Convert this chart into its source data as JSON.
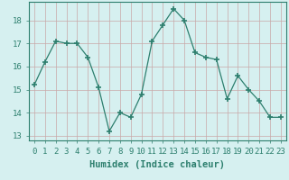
{
  "x": [
    0,
    1,
    2,
    3,
    4,
    5,
    6,
    7,
    8,
    9,
    10,
    11,
    12,
    13,
    14,
    15,
    16,
    17,
    18,
    19,
    20,
    21,
    22,
    23
  ],
  "y": [
    15.2,
    16.2,
    17.1,
    17.0,
    17.0,
    16.4,
    15.1,
    13.2,
    14.0,
    13.8,
    14.8,
    17.1,
    17.8,
    18.5,
    18.0,
    16.6,
    16.4,
    16.3,
    14.6,
    15.6,
    15.0,
    14.5,
    13.8,
    13.8
  ],
  "xlabel": "Humidex (Indice chaleur)",
  "ylim": [
    12.8,
    18.8
  ],
  "xlim": [
    -0.5,
    23.5
  ],
  "yticks": [
    13,
    14,
    15,
    16,
    17,
    18
  ],
  "xticks": [
    0,
    1,
    2,
    3,
    4,
    5,
    6,
    7,
    8,
    9,
    10,
    11,
    12,
    13,
    14,
    15,
    16,
    17,
    18,
    19,
    20,
    21,
    22,
    23
  ],
  "xtick_labels": [
    "0",
    "1",
    "2",
    "3",
    "4",
    "5",
    "6",
    "7",
    "8",
    "9",
    "10",
    "11",
    "12",
    "13",
    "14",
    "15",
    "16",
    "17",
    "18",
    "19",
    "20",
    "21",
    "22",
    "23"
  ],
  "line_color": "#2d7f6e",
  "marker_color": "#2d7f6e",
  "bg_color": "#d6f0f0",
  "grid_color": "#c8a8a8",
  "xlabel_fontsize": 7.5,
  "tick_fontsize": 6.5,
  "title_color": "#2d7f6e"
}
